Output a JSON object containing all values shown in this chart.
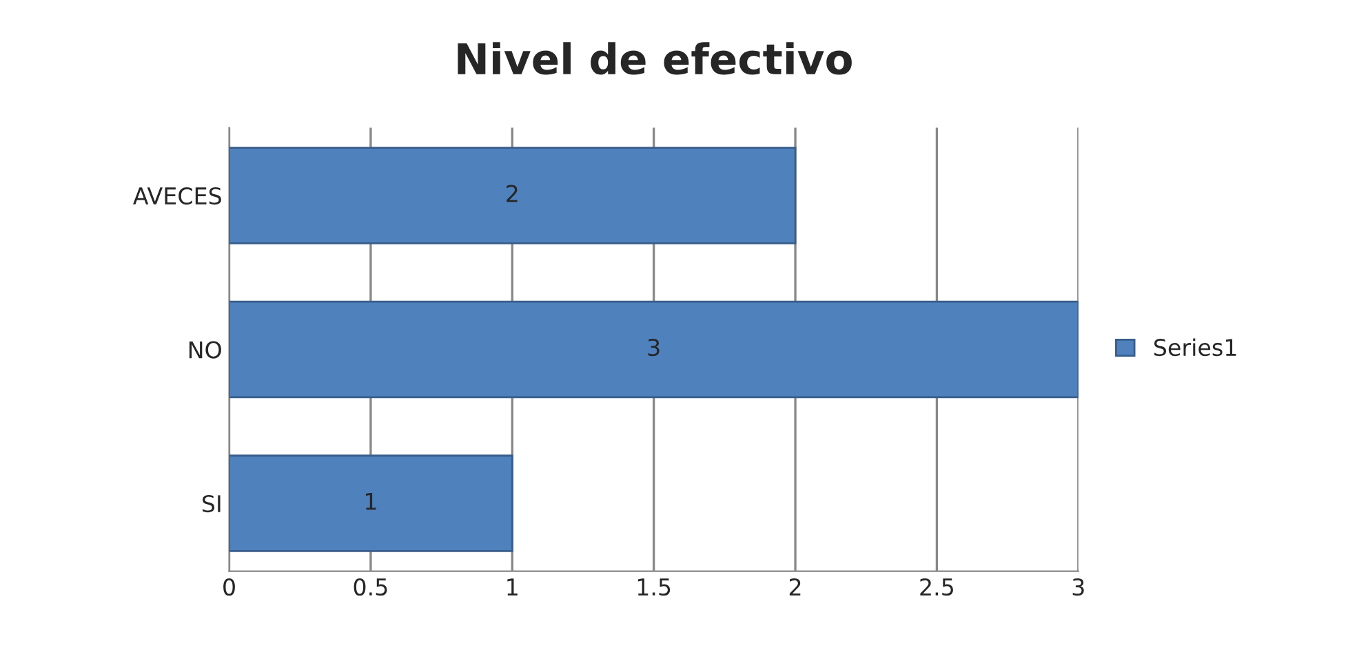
{
  "chart_data": {
    "type": "bar",
    "orientation": "horizontal",
    "title": "Nivel de efectivo",
    "categories": [
      "AVECES",
      "NO",
      "SI"
    ],
    "series": [
      {
        "name": "Series1",
        "color": "#4f81bd",
        "values": [
          2,
          3,
          1
        ]
      }
    ],
    "xlim": [
      0,
      3
    ],
    "xticks": [
      0,
      0.5,
      1,
      1.5,
      2,
      2.5,
      3
    ],
    "grid": "x",
    "legend": "right",
    "data_labels": true
  }
}
